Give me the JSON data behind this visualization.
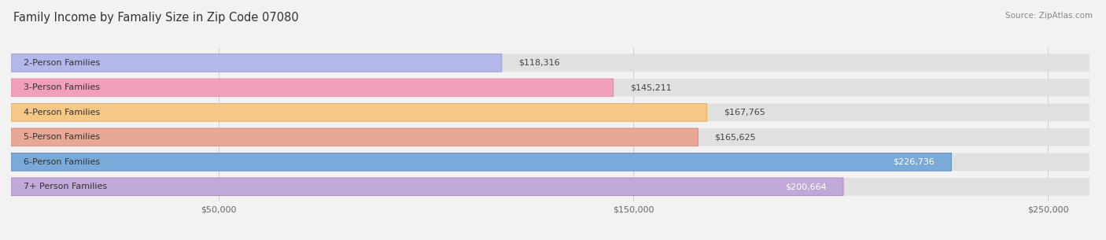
{
  "title": "Family Income by Famaliy Size in Zip Code 07080",
  "source": "Source: ZipAtlas.com",
  "categories": [
    "2-Person Families",
    "3-Person Families",
    "4-Person Families",
    "5-Person Families",
    "6-Person Families",
    "7+ Person Families"
  ],
  "values": [
    118316,
    145211,
    167765,
    165625,
    226736,
    200664
  ],
  "bar_colors": [
    "#b3b8e8",
    "#f0a0b8",
    "#f5c888",
    "#e8a898",
    "#7aaad8",
    "#c0a8d8"
  ],
  "bar_edge_colors": [
    "#9898d0",
    "#e08898",
    "#e0aa60",
    "#d08878",
    "#5888c0",
    "#a888c0"
  ],
  "value_labels": [
    "$118,316",
    "$145,211",
    "$167,765",
    "$165,625",
    "$226,736",
    "$200,664"
  ],
  "value_label_colors": [
    "#444444",
    "#444444",
    "#444444",
    "#444444",
    "#ffffff",
    "#ffffff"
  ],
  "xlim": [
    0,
    260000
  ],
  "xticks": [
    0,
    50000,
    150000,
    250000
  ],
  "xticklabels": [
    "",
    "$50,000",
    "$150,000",
    "$250,000"
  ],
  "background_color": "#f2f2f2",
  "bar_bg_color": "#e0e0e0",
  "title_fontsize": 10.5,
  "label_fontsize": 8,
  "value_fontsize": 8,
  "tick_fontsize": 8
}
